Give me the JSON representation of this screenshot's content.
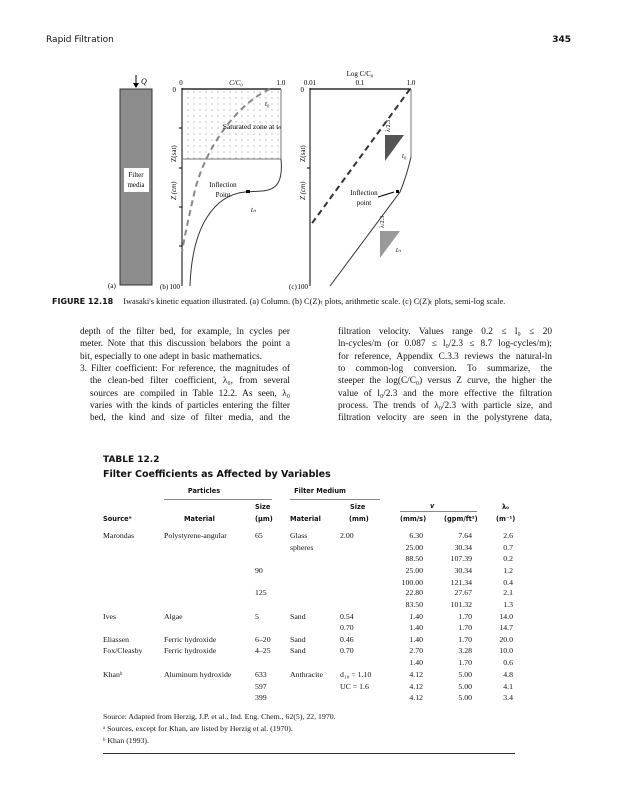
{
  "header": {
    "running_title": "Rapid Filtration",
    "page_number": "345"
  },
  "figure": {
    "panel_a": {
      "label": "(a)",
      "flow": "Q",
      "media": [
        "Filter",
        "media"
      ]
    },
    "panel_b": {
      "label": "(b)",
      "x_title": "C/C₀",
      "x_ticks": [
        "0",
        "1.0"
      ],
      "y_top": "0",
      "y_bottom": "100",
      "y_label": "Z (cm)",
      "z_sat": "Z(sat)",
      "zone": "Saturated zone at tₙ",
      "curve_t0": "t₀",
      "curve_tn": "tₙ",
      "inflection": [
        "Inflection",
        "Point"
      ]
    },
    "panel_c": {
      "label": "(c)",
      "x_title": "Log C/C₀",
      "x_ticks": [
        "0.01",
        "0.1",
        "1.0"
      ],
      "y_top": "0",
      "y_bottom": "100",
      "y_label": "Z (cm)",
      "z_sat": "Z(sat)",
      "slope": "λ/2.3",
      "curve_t0": "t₀",
      "curve_tn": "tₙ",
      "inflection": [
        "Inflection",
        "point"
      ]
    },
    "caption_label": "FIGURE 12.18",
    "caption": "Iwasaki's kinetic equation illustrated. (a) Column. (b) C(Z)ₜ plots, arithmetic scale. (c) C(Z)ₜ plots, semi-log scale."
  },
  "body": {
    "left": [
      "depth of the filter bed, for example, ln cycles per",
      "meter. Note that this discussion belabors the point a",
      "bit, especially to one adept in basic mathematics.",
      "3. Filter coefficient: For reference, the magnitudes of",
      "the clean-bed filter coefficient, λ₀, from several",
      "sources are compiled in Table 12.2. As seen, λ₀",
      "varies with the kinds of particles entering the filter",
      "bed, the kind and size of filter media, and the"
    ],
    "right": [
      "filtration velocity. Values range 0.2 ≤ l₀ ≤ 20",
      "ln-cycles/m (or 0.087 ≤ l₀/2.3 ≤ 8.7 log-cycles/m);",
      "for reference, Appendix C.3.3 reviews the natural-ln",
      "to common-log conversion. To summarize, the",
      "steeper the log(C/C₀) versus Z curve, the higher the",
      "value of l₀/2.3 and the more effective the filtration",
      "process. The trends of λ₀/2.3 with particle size, and",
      "filtration velocity are seen in the polystyrene data,"
    ]
  },
  "table": {
    "label": "TABLE 12.2",
    "title": "Filter Coefficients as Affected by Variables",
    "group_particles": "Particles",
    "group_medium": "Filter Medium",
    "group_v": "v",
    "headers": {
      "source": "Sourceᵃ",
      "p_material": "Material",
      "p_size": [
        "Size",
        "(μm)"
      ],
      "m_material": "Material",
      "m_size": [
        "Size",
        "(mm)"
      ],
      "v_mms": "(mm/s)",
      "v_gpm": "(gpm/ft²)",
      "lambda": [
        "λ₀",
        "(m⁻¹)"
      ]
    },
    "rows": [
      [
        "Marondas",
        "Polystyrene-angular",
        "65",
        "Glass",
        "2.00",
        "6.30",
        "7.64",
        "2.6"
      ],
      [
        "",
        "",
        "",
        "spheres",
        "",
        "25.00",
        "30.34",
        "0.7"
      ],
      [
        "",
        "",
        "",
        "",
        "",
        "88.50",
        "107.39",
        "0.2"
      ],
      [
        "",
        "",
        "90",
        "",
        "",
        "25.00",
        "30.34",
        "1.2"
      ],
      [
        "",
        "",
        "",
        "",
        "",
        "100.00",
        "121.34",
        "0.4"
      ],
      [
        "",
        "",
        "125",
        "",
        "",
        "22.80",
        "27.67",
        "2.1"
      ],
      [
        "",
        "",
        "",
        "",
        "",
        "83.50",
        "101.32",
        "1.3"
      ],
      [
        "Ives",
        "Algae",
        "5",
        "Sand",
        "0.54",
        "1.40",
        "1.70",
        "14.0"
      ],
      [
        "",
        "",
        "",
        "",
        "0.70",
        "1.40",
        "1.70",
        "14.7"
      ],
      [
        "Eliassen",
        "Ferric hydroxide",
        "6–20",
        "Sand",
        "0.46",
        "1.40",
        "1.70",
        "20.0"
      ],
      [
        "Fox/Cleasby",
        "Ferric hydroxide",
        "4–25",
        "Sand",
        "0.70",
        "2.70",
        "3.28",
        "10.0"
      ],
      [
        "",
        "",
        "",
        "",
        "",
        "1.40",
        "1.70",
        "0.6"
      ],
      [
        "Khanᵇ",
        "Aluminum hydroxide",
        "633",
        "Anthracite",
        "d₁₀ = 1.10",
        "4.12",
        "5.00",
        "4.8"
      ],
      [
        "",
        "",
        "597",
        "",
        "UC = 1.6",
        "4.12",
        "5.00",
        "4.1"
      ],
      [
        "",
        "",
        "399",
        "",
        "",
        "4.12",
        "5.00",
        "3.4"
      ]
    ],
    "source": "Source:  Adapted from Herzig, J.P. et al., Ind. Eng. Chem., 62(5), 22, 1970.",
    "note_a": "ᵃ  Sources, except for Khan, are listed by Herzig et al. (1970).",
    "note_b": "ᵇ  Khan (1993)."
  }
}
